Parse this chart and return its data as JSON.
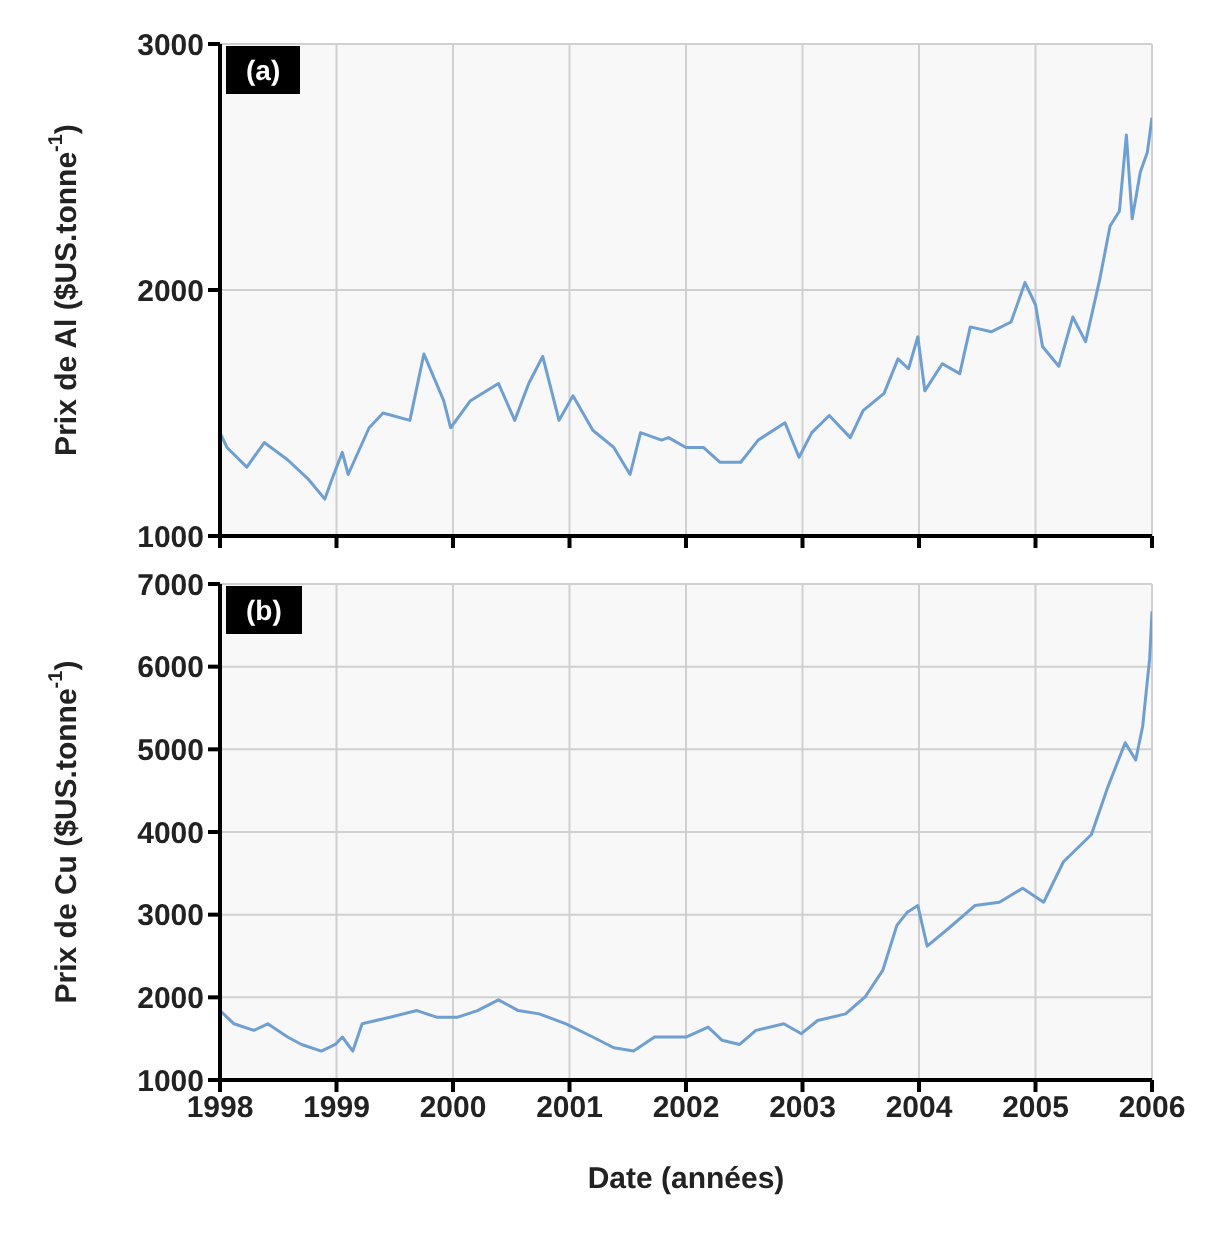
{
  "chart_data": [
    {
      "type": "line",
      "annotations": [
        "(a)"
      ],
      "ylabel": "Prix de Al ($US.tonne$^{-1}$)",
      "xlim": [
        1998,
        2006
      ],
      "xticks": [
        1998,
        1999,
        2000,
        2001,
        2002,
        2003,
        2004,
        2005,
        2006
      ],
      "ylim": [
        1000,
        3000
      ],
      "yticks": [
        1000,
        2000,
        3000
      ],
      "grid": true,
      "tick_labels": "y",
      "marker": "none",
      "series": [
        {
          "color": "#6f9fd0",
          "x": [
            1998.0,
            1998.06,
            1998.23,
            1998.38,
            1998.58,
            1998.76,
            1998.9,
            1998.96,
            1999.05,
            1999.1,
            1999.28,
            1999.4,
            1999.63,
            1999.75,
            1999.92,
            1999.98,
            2000.15,
            2000.39,
            2000.53,
            2000.65,
            2000.77,
            2000.91,
            2001.03,
            2001.2,
            2001.38,
            2001.52,
            2001.61,
            2001.79,
            2001.85,
            2002.0,
            2002.15,
            2002.29,
            2002.47,
            2002.62,
            2002.85,
            2002.97,
            2003.08,
            2003.23,
            2003.41,
            2003.52,
            2003.7,
            2003.82,
            2003.91,
            2003.99,
            2004.05,
            2004.2,
            2004.35,
            2004.44,
            2004.62,
            2004.79,
            2004.91,
            2005.0,
            2005.06,
            2005.2,
            2005.32,
            2005.43,
            2005.55,
            2005.64,
            2005.72,
            2005.78,
            2005.83,
            2005.9,
            2005.96,
            2006.0
          ],
          "values": [
            1420,
            1360,
            1280,
            1380,
            1310,
            1230,
            1150,
            1230,
            1340,
            1250,
            1440,
            1500,
            1470,
            1740,
            1550,
            1440,
            1550,
            1620,
            1470,
            1620,
            1730,
            1470,
            1570,
            1430,
            1360,
            1250,
            1420,
            1390,
            1400,
            1360,
            1360,
            1300,
            1300,
            1390,
            1460,
            1320,
            1420,
            1490,
            1400,
            1510,
            1580,
            1720,
            1680,
            1810,
            1590,
            1700,
            1660,
            1850,
            1830,
            1870,
            2030,
            1940,
            1770,
            1690,
            1890,
            1790,
            2040,
            2260,
            2320,
            2630,
            2290,
            2480,
            2560,
            2700
          ]
        }
      ]
    },
    {
      "type": "line",
      "annotations": [
        "(b)"
      ],
      "xlabel": "Date (années)",
      "ylabel": "Prix de Cu ($US.tonne$^{-1}$)",
      "xlim": [
        1998,
        2006
      ],
      "xticks": [
        1998,
        1999,
        2000,
        2001,
        2002,
        2003,
        2004,
        2005,
        2006
      ],
      "ylim": [
        1000,
        7000
      ],
      "yticks": [
        1000,
        2000,
        3000,
        4000,
        5000,
        6000,
        7000
      ],
      "grid": true,
      "marker": "none",
      "series": [
        {
          "color": "#6f9fd0",
          "x": [
            1998.0,
            1998.12,
            1998.29,
            1998.41,
            1998.58,
            1998.7,
            1998.87,
            1998.99,
            1999.05,
            1999.14,
            1999.22,
            1999.46,
            1999.69,
            1999.86,
            2000.04,
            2000.21,
            2000.39,
            2000.56,
            2000.74,
            2000.97,
            2001.2,
            2001.38,
            2001.55,
            2001.73,
            2002.0,
            2002.19,
            2002.31,
            2002.46,
            2002.6,
            2002.84,
            2002.99,
            2003.13,
            2003.37,
            2003.54,
            2003.69,
            2003.81,
            2003.9,
            2003.99,
            2004.07,
            2004.25,
            2004.48,
            2004.69,
            2004.89,
            2005.07,
            2005.24,
            2005.48,
            2005.62,
            2005.77,
            2005.86,
            2005.92,
            2005.98,
            2006.0
          ],
          "values": [
            1840,
            1680,
            1600,
            1680,
            1520,
            1430,
            1350,
            1430,
            1520,
            1350,
            1680,
            1760,
            1840,
            1760,
            1760,
            1840,
            1970,
            1840,
            1800,
            1680,
            1520,
            1390,
            1350,
            1520,
            1520,
            1640,
            1480,
            1430,
            1600,
            1680,
            1560,
            1720,
            1800,
            2010,
            2330,
            2870,
            3030,
            3110,
            2620,
            2830,
            3110,
            3150,
            3320,
            3150,
            3640,
            3970,
            4540,
            5080,
            4870,
            5280,
            6100,
            6670
          ]
        }
      ]
    }
  ]
}
